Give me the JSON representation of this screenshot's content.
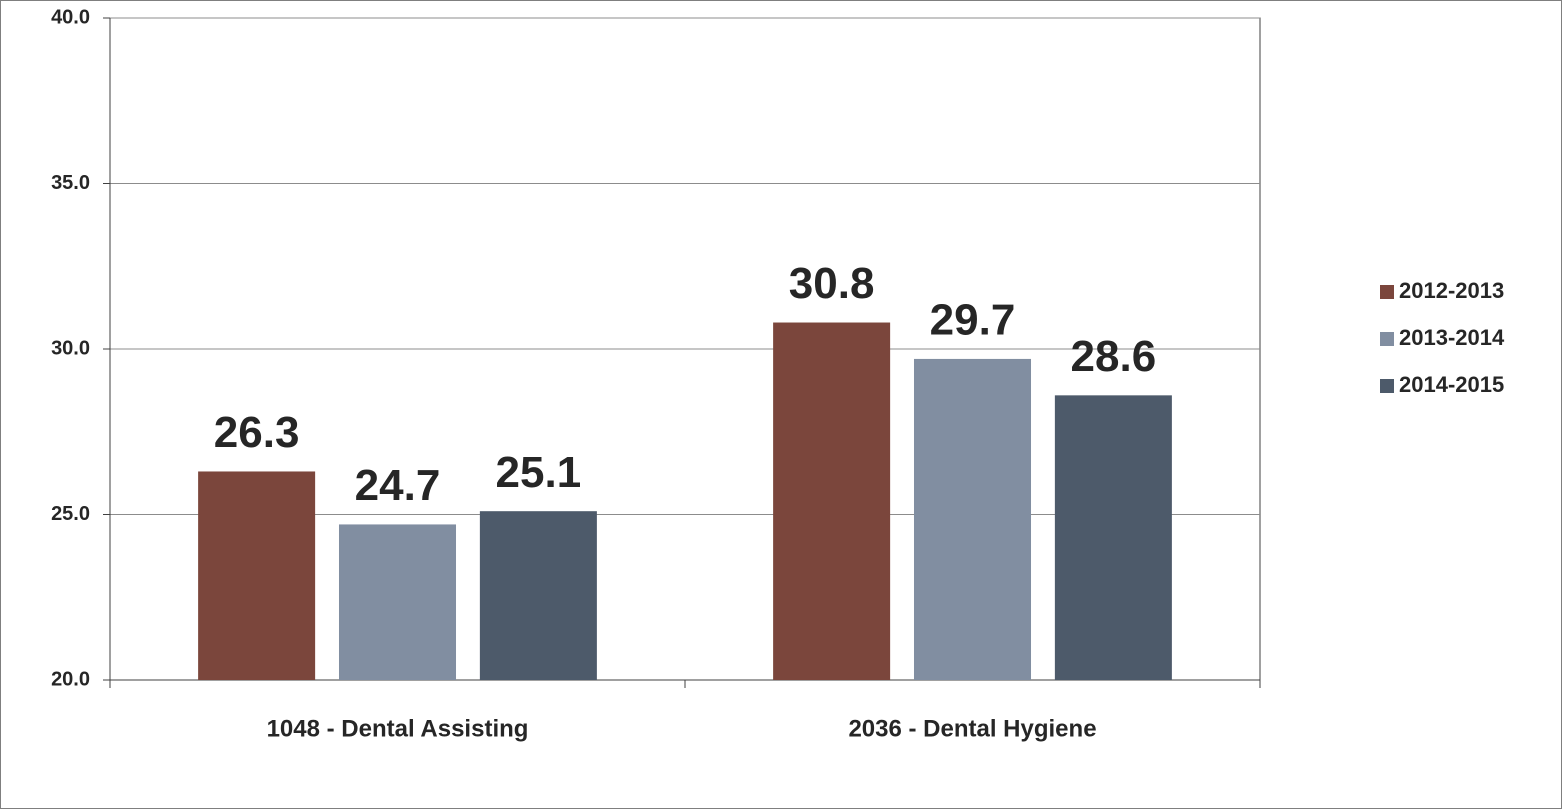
{
  "chart_data": {
    "type": "bar",
    "categories": [
      "1048 - Dental Assisting",
      "2036 - Dental Hygiene"
    ],
    "series": [
      {
        "name": "2012-2013",
        "color": "#7b463c",
        "values": [
          26.3,
          30.8
        ]
      },
      {
        "name": "2013-2014",
        "color": "#818ea1",
        "values": [
          24.7,
          29.7
        ]
      },
      {
        "name": "2014-2015",
        "color": "#4d5a6a",
        "values": [
          25.1,
          28.6
        ]
      }
    ],
    "ylim": [
      20,
      40
    ],
    "yticks": [
      {
        "value": 20,
        "label": "20.0"
      },
      {
        "value": 25,
        "label": "25.0"
      },
      {
        "value": 30,
        "label": "30.0"
      },
      {
        "value": 35,
        "label": "35.0"
      },
      {
        "value": 40,
        "label": "40.0"
      }
    ],
    "grid": true,
    "legend": "right"
  }
}
